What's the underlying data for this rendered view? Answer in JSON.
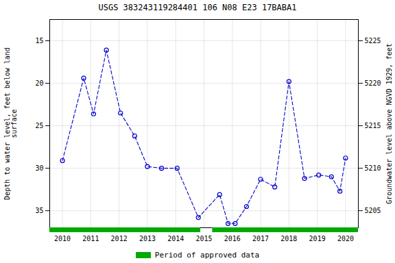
{
  "chart_data": {
    "type": "line",
    "title": "USGS 383243119284401 106  N08 E23 17BABA1",
    "ylabel": "Depth to water level, feet below land\nsurface",
    "y2label": "Groundwater level above NGVD 1929, feet",
    "x": [
      2010.0,
      2010.75,
      2011.1,
      2011.55,
      2012.05,
      2012.55,
      2013.0,
      2013.5,
      2014.05,
      2014.8,
      2015.55,
      2015.85,
      2016.1,
      2016.5,
      2017.0,
      2017.5,
      2018.0,
      2018.55,
      2019.05,
      2019.5,
      2019.8,
      2020.0
    ],
    "values": [
      29.1,
      19.4,
      23.6,
      16.1,
      23.5,
      26.2,
      29.8,
      30.0,
      30.0,
      35.8,
      33.1,
      36.5,
      36.5,
      34.5,
      31.3,
      32.2,
      19.8,
      31.2,
      30.8,
      31.0,
      32.7,
      28.8
    ],
    "color": "#0000cc",
    "marker": "circle",
    "line_style": "dashed",
    "xlim": [
      2009.55,
      2020.45
    ],
    "xticks": [
      2010,
      2011,
      2012,
      2013,
      2014,
      2015,
      2016,
      2017,
      2018,
      2019,
      2020
    ],
    "ylim": [
      37.0,
      12.5
    ],
    "yticks": [
      15,
      20,
      25,
      30,
      35
    ],
    "y2lim": [
      5203.0,
      5227.5
    ],
    "y2ticks": [
      5205,
      5210,
      5215,
      5220,
      5225
    ],
    "grid": true,
    "legend": "bottom",
    "approved_periods": {
      "name": "Period of approved data",
      "color": "#00aa00",
      "ranges": [
        [
          2009.55,
          2014.88
        ],
        [
          2015.3,
          2020.45
        ]
      ]
    }
  }
}
